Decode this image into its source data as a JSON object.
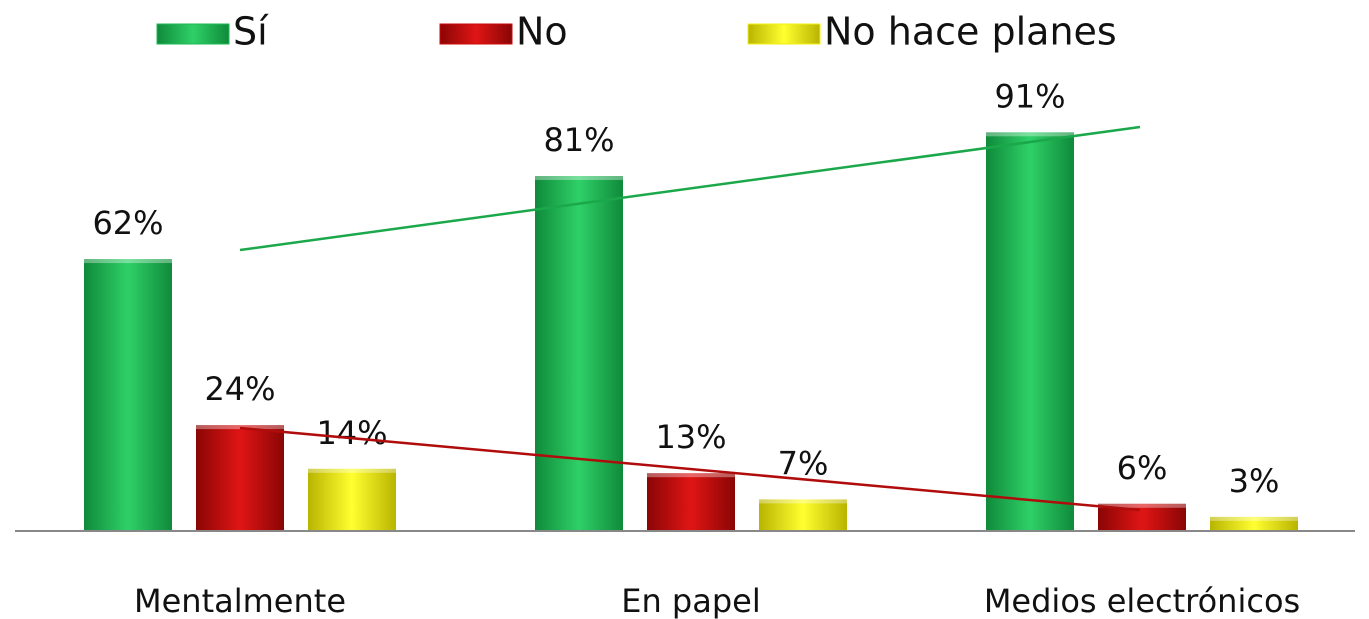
{
  "chart_data": {
    "type": "bar",
    "categories": [
      "Mentalmente",
      "En papel",
      "Medios electrónicos"
    ],
    "series": [
      {
        "name": "Sí",
        "color": "#1db954",
        "values": [
          62,
          81,
          91
        ],
        "value_labels": [
          "62%",
          "81%",
          "91%"
        ]
      },
      {
        "name": "No",
        "color": "#cc0a0a",
        "values": [
          24,
          13,
          6
        ],
        "value_labels": [
          "24%",
          "13%",
          "6%"
        ]
      },
      {
        "name": "No hace planes",
        "color": "#f2ef10",
        "values": [
          14,
          7,
          3
        ],
        "value_labels": [
          "14%",
          "7%",
          "3%"
        ]
      }
    ],
    "ylim": [
      0,
      100
    ]
  }
}
